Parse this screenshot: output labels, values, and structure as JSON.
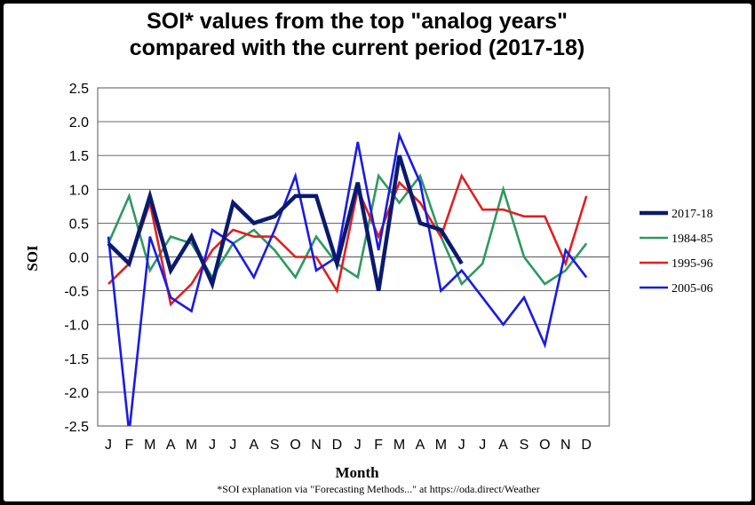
{
  "chart_data": {
    "type": "line",
    "title_line1": "SOI* values from the top \"analog years\"",
    "title_line2": "compared with the current period (2017-18)",
    "xlabel": "Month",
    "ylabel": "SOI",
    "footnote": "*SOI explanation via \"Forecasting Methods...\" at https://oda.direct/Weather",
    "categories": [
      "J",
      "F",
      "M",
      "A",
      "M",
      "J",
      "J",
      "A",
      "S",
      "O",
      "N",
      "D",
      "J",
      "F",
      "M",
      "A",
      "M",
      "J",
      "J",
      "A",
      "S",
      "O",
      "N",
      "D"
    ],
    "ylim": [
      -2.5,
      2.5
    ],
    "yticks": [
      "2.5",
      "2.0",
      "1.5",
      "1.0",
      "0.5",
      "0.0",
      "-0.5",
      "-1.0",
      "-1.5",
      "-2.0",
      "-2.5"
    ],
    "grid": true,
    "legend_position": "right",
    "series": [
      {
        "name": "2017-18",
        "color": "#0a1a6e",
        "values": [
          0.2,
          -0.1,
          0.9,
          -0.2,
          0.3,
          -0.4,
          0.8,
          0.5,
          0.6,
          0.9,
          0.9,
          -0.1,
          1.1,
          -0.5,
          1.5,
          0.5,
          0.4,
          -0.1,
          null,
          null,
          null,
          null,
          null,
          null
        ]
      },
      {
        "name": "1984-85",
        "color": "#2e9960",
        "values": [
          0.2,
          0.9,
          -0.2,
          0.3,
          0.2,
          -0.3,
          0.2,
          0.4,
          0.1,
          -0.3,
          0.3,
          -0.1,
          -0.3,
          1.2,
          0.8,
          1.2,
          0.3,
          -0.4,
          -0.1,
          1.0,
          0.0,
          -0.4,
          -0.2,
          0.2
        ]
      },
      {
        "name": "1995-96",
        "color": "#e02020",
        "values": [
          -0.4,
          -0.1,
          0.8,
          -0.7,
          -0.4,
          0.1,
          0.4,
          0.3,
          0.3,
          0.0,
          0.0,
          -0.5,
          1.0,
          0.3,
          1.1,
          0.8,
          0.3,
          1.2,
          0.7,
          0.7,
          0.6,
          0.6,
          -0.1,
          0.9
        ]
      },
      {
        "name": "2005-06",
        "color": "#1a1ae6",
        "values": [
          0.3,
          -2.6,
          0.3,
          -0.6,
          -0.8,
          0.4,
          0.2,
          -0.3,
          0.4,
          1.2,
          -0.2,
          0.0,
          1.7,
          0.1,
          1.8,
          1.1,
          -0.5,
          -0.2,
          -0.6,
          -1.0,
          -0.6,
          -1.3,
          0.1,
          -0.3
        ]
      }
    ]
  }
}
